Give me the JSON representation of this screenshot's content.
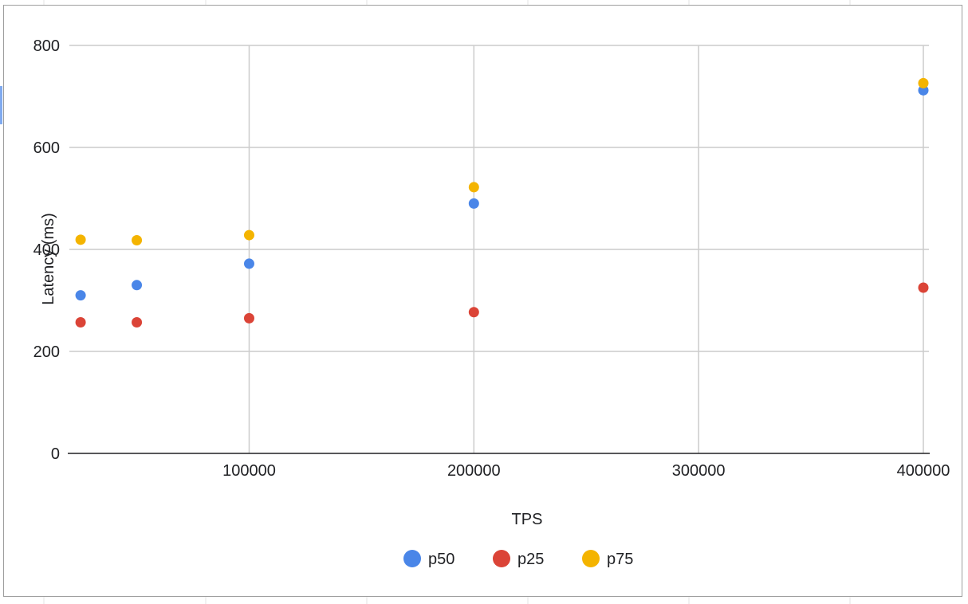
{
  "chart_data": {
    "type": "scatter",
    "title": "",
    "xlabel": "TPS",
    "ylabel": "Latency (ms)",
    "xlim": [
      20000,
      400000
    ],
    "ylim": [
      0,
      800
    ],
    "xticks": [
      100000,
      200000,
      300000,
      400000
    ],
    "yticks": [
      0,
      200,
      400,
      600,
      800
    ],
    "grid": true,
    "legend_position": "bottom",
    "series": [
      {
        "name": "p50",
        "color": "#4a86e8",
        "points": [
          {
            "x": 25000,
            "y": 310
          },
          {
            "x": 50000,
            "y": 330
          },
          {
            "x": 100000,
            "y": 372
          },
          {
            "x": 200000,
            "y": 490
          },
          {
            "x": 400000,
            "y": 712
          }
        ]
      },
      {
        "name": "p25",
        "color": "#db4437",
        "points": [
          {
            "x": 25000,
            "y": 257
          },
          {
            "x": 50000,
            "y": 257
          },
          {
            "x": 100000,
            "y": 265
          },
          {
            "x": 200000,
            "y": 277
          },
          {
            "x": 400000,
            "y": 325
          }
        ]
      },
      {
        "name": "p75",
        "color": "#f4b400",
        "points": [
          {
            "x": 25000,
            "y": 419
          },
          {
            "x": 50000,
            "y": 418
          },
          {
            "x": 100000,
            "y": 428
          },
          {
            "x": 200000,
            "y": 522
          },
          {
            "x": 400000,
            "y": 726
          }
        ]
      }
    ]
  }
}
